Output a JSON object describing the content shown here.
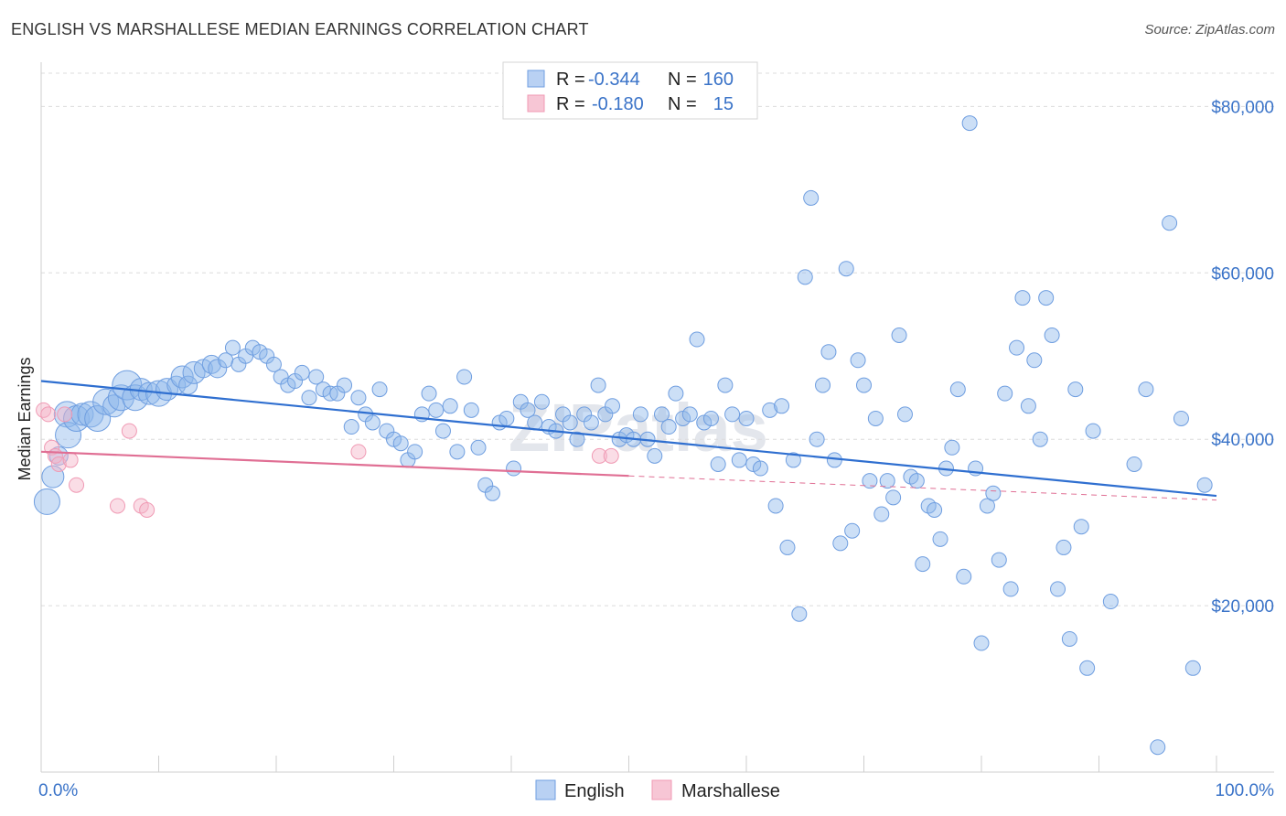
{
  "title": "ENGLISH VS MARSHALLESE MEDIAN EARNINGS CORRELATION CHART",
  "source": "Source: ZipAtlas.com",
  "watermark": "ZIPatlas",
  "colors": {
    "english": "#6f9ee0",
    "english_line": "#2f6fd0",
    "marshallese": "#f09ab4",
    "marshallese_line": "#e06f94",
    "tick": "#3a73c8"
  },
  "legend": {
    "rows": [
      {
        "r_label": "R =",
        "r_value": "-0.344",
        "n_label": "N =",
        "n_value": "160"
      },
      {
        "r_label": "R =",
        "r_value": "-0.180",
        "n_label": "N =",
        "n_value": "15"
      }
    ]
  },
  "bottom_legend": {
    "english": "English",
    "marshallese": "Marshallese"
  },
  "chart_data": {
    "type": "scatter",
    "xlabel": "",
    "ylabel": "Median Earnings",
    "xlim": [
      0,
      100
    ],
    "ylim": [
      0,
      84000
    ],
    "x_tick_labels": [
      "0.0%",
      "100.0%"
    ],
    "y_ticks": [
      20000,
      40000,
      60000,
      80000
    ],
    "y_tick_labels": [
      "$20,000",
      "$40,000",
      "$60,000",
      "$80,000"
    ],
    "grid": "horizontal dashed",
    "legend_placement": "top-center",
    "series": [
      {
        "name": "English",
        "trend": [
          [
            0,
            47000
          ],
          [
            100,
            33200
          ]
        ],
        "points": [
          [
            0.5,
            32500,
            14
          ],
          [
            1.0,
            35500,
            12
          ],
          [
            1.5,
            38000,
            10
          ],
          [
            2.2,
            43000,
            14
          ],
          [
            2.3,
            40500,
            14
          ],
          [
            3.0,
            42500,
            14
          ],
          [
            3.5,
            43000,
            12
          ],
          [
            4.2,
            43000,
            14
          ],
          [
            4.8,
            42500,
            14
          ],
          [
            5.5,
            44500,
            14
          ],
          [
            6.2,
            44000,
            12
          ],
          [
            6.8,
            45000,
            14
          ],
          [
            7.3,
            46500,
            16
          ],
          [
            8.0,
            45000,
            14
          ],
          [
            8.5,
            46000,
            12
          ],
          [
            9.2,
            45500,
            12
          ],
          [
            10.0,
            45500,
            14
          ],
          [
            10.7,
            46000,
            12
          ],
          [
            11.5,
            46500,
            10
          ],
          [
            12.0,
            47500,
            12
          ],
          [
            12.5,
            46500,
            10
          ],
          [
            13.0,
            48000,
            12
          ],
          [
            13.8,
            48500,
            10
          ],
          [
            14.5,
            49000,
            10
          ],
          [
            15.0,
            48500,
            10
          ],
          [
            15.7,
            49500,
            8
          ],
          [
            16.3,
            51000,
            8
          ],
          [
            16.8,
            49000,
            8
          ],
          [
            17.4,
            50000,
            8
          ],
          [
            18.0,
            51000,
            8
          ],
          [
            18.6,
            50500,
            8
          ],
          [
            19.2,
            50000,
            8
          ],
          [
            19.8,
            49000,
            8
          ],
          [
            20.4,
            47500,
            8
          ],
          [
            21.0,
            46500,
            8
          ],
          [
            21.6,
            47000,
            8
          ],
          [
            22.2,
            48000,
            8
          ],
          [
            22.8,
            45000,
            8
          ],
          [
            23.4,
            47500,
            8
          ],
          [
            24.0,
            46000,
            8
          ],
          [
            24.6,
            45500,
            8
          ],
          [
            25.2,
            45500,
            8
          ],
          [
            25.8,
            46500,
            8
          ],
          [
            26.4,
            41500,
            8
          ],
          [
            27.0,
            45000,
            8
          ],
          [
            27.6,
            43000,
            8
          ],
          [
            28.2,
            42000,
            8
          ],
          [
            28.8,
            46000,
            8
          ],
          [
            29.4,
            41000,
            8
          ],
          [
            30.0,
            40000,
            8
          ],
          [
            30.6,
            39500,
            8
          ],
          [
            31.2,
            37500,
            8
          ],
          [
            31.8,
            38500,
            8
          ],
          [
            32.4,
            43000,
            8
          ],
          [
            33.0,
            45500,
            8
          ],
          [
            33.6,
            43500,
            8
          ],
          [
            34.2,
            41000,
            8
          ],
          [
            34.8,
            44000,
            8
          ],
          [
            35.4,
            38500,
            8
          ],
          [
            36.0,
            47500,
            8
          ],
          [
            36.6,
            43500,
            8
          ],
          [
            37.2,
            39000,
            8
          ],
          [
            37.8,
            34500,
            8
          ],
          [
            38.4,
            33500,
            8
          ],
          [
            39.0,
            42000,
            8
          ],
          [
            39.6,
            42500,
            8
          ],
          [
            40.2,
            36500,
            8
          ],
          [
            40.8,
            44500,
            8
          ],
          [
            41.4,
            43500,
            8
          ],
          [
            42.0,
            42000,
            8
          ],
          [
            42.6,
            44500,
            8
          ],
          [
            43.2,
            41500,
            8
          ],
          [
            43.8,
            41000,
            8
          ],
          [
            44.4,
            43000,
            8
          ],
          [
            45.0,
            42000,
            8
          ],
          [
            45.6,
            40000,
            8
          ],
          [
            46.2,
            43000,
            8
          ],
          [
            46.8,
            42000,
            8
          ],
          [
            47.4,
            46500,
            8
          ],
          [
            48.0,
            43000,
            8
          ],
          [
            48.6,
            44000,
            8
          ],
          [
            49.2,
            40000,
            8
          ],
          [
            49.8,
            40500,
            8
          ],
          [
            50.4,
            40000,
            8
          ],
          [
            51.0,
            43000,
            8
          ],
          [
            51.6,
            40000,
            8
          ],
          [
            52.2,
            38000,
            8
          ],
          [
            52.8,
            43000,
            8
          ],
          [
            53.4,
            41500,
            8
          ],
          [
            54.0,
            45500,
            8
          ],
          [
            54.6,
            42500,
            8
          ],
          [
            55.2,
            43000,
            8
          ],
          [
            55.8,
            52000,
            8
          ],
          [
            56.4,
            42000,
            8
          ],
          [
            57.0,
            42500,
            8
          ],
          [
            57.6,
            37000,
            8
          ],
          [
            58.2,
            46500,
            8
          ],
          [
            58.8,
            43000,
            8
          ],
          [
            59.4,
            37500,
            8
          ],
          [
            60.0,
            42500,
            8
          ],
          [
            60.6,
            37000,
            8
          ],
          [
            61.2,
            36500,
            8
          ],
          [
            62.0,
            43500,
            8
          ],
          [
            62.5,
            32000,
            8
          ],
          [
            63.0,
            44000,
            8
          ],
          [
            63.5,
            27000,
            8
          ],
          [
            64.0,
            37500,
            8
          ],
          [
            64.5,
            19000,
            8
          ],
          [
            65.0,
            59500,
            8
          ],
          [
            65.5,
            69000,
            8
          ],
          [
            66.0,
            40000,
            8
          ],
          [
            66.5,
            46500,
            8
          ],
          [
            67.0,
            50500,
            8
          ],
          [
            67.5,
            37500,
            8
          ],
          [
            68.0,
            27500,
            8
          ],
          [
            68.5,
            60500,
            8
          ],
          [
            69.0,
            29000,
            8
          ],
          [
            69.5,
            49500,
            8
          ],
          [
            70.0,
            46500,
            8
          ],
          [
            70.5,
            35000,
            8
          ],
          [
            71.0,
            42500,
            8
          ],
          [
            71.5,
            31000,
            8
          ],
          [
            72.0,
            35000,
            8
          ],
          [
            72.5,
            33000,
            8
          ],
          [
            73.0,
            52500,
            8
          ],
          [
            73.5,
            43000,
            8
          ],
          [
            74.0,
            35500,
            8
          ],
          [
            74.5,
            35000,
            8
          ],
          [
            75.0,
            25000,
            8
          ],
          [
            75.5,
            32000,
            8
          ],
          [
            76.0,
            31500,
            8
          ],
          [
            76.5,
            28000,
            8
          ],
          [
            77.0,
            36500,
            8
          ],
          [
            77.5,
            39000,
            8
          ],
          [
            78.0,
            46000,
            8
          ],
          [
            78.5,
            23500,
            8
          ],
          [
            79.0,
            78000,
            8
          ],
          [
            79.5,
            36500,
            8
          ],
          [
            80.0,
            15500,
            8
          ],
          [
            80.5,
            32000,
            8
          ],
          [
            81.0,
            33500,
            8
          ],
          [
            81.5,
            25500,
            8
          ],
          [
            82.0,
            45500,
            8
          ],
          [
            82.5,
            22000,
            8
          ],
          [
            83.0,
            51000,
            8
          ],
          [
            83.5,
            57000,
            8
          ],
          [
            84.0,
            44000,
            8
          ],
          [
            84.5,
            49500,
            8
          ],
          [
            85.0,
            40000,
            8
          ],
          [
            85.5,
            57000,
            8
          ],
          [
            86.0,
            52500,
            8
          ],
          [
            86.5,
            22000,
            8
          ],
          [
            87.0,
            27000,
            8
          ],
          [
            87.5,
            16000,
            8
          ],
          [
            88.0,
            46000,
            8
          ],
          [
            88.5,
            29500,
            8
          ],
          [
            89.0,
            12500,
            8
          ],
          [
            89.5,
            41000,
            8
          ],
          [
            91.0,
            20500,
            8
          ],
          [
            93.0,
            37000,
            8
          ],
          [
            94.0,
            46000,
            8
          ],
          [
            95.0,
            3000,
            8
          ],
          [
            96.0,
            66000,
            8
          ],
          [
            97.0,
            42500,
            8
          ],
          [
            98.0,
            12500,
            8
          ],
          [
            99.0,
            34500,
            8
          ]
        ]
      },
      {
        "name": "Marshallese",
        "trend": [
          [
            0,
            38500
          ],
          [
            50,
            35600
          ]
        ],
        "points": [
          [
            0.2,
            43500,
            8
          ],
          [
            0.6,
            43000,
            8
          ],
          [
            0.9,
            39000,
            8
          ],
          [
            1.2,
            38000,
            8
          ],
          [
            1.5,
            37000,
            8
          ],
          [
            2.0,
            43000,
            8
          ],
          [
            2.5,
            37500,
            8
          ],
          [
            3.0,
            34500,
            8
          ],
          [
            6.5,
            32000,
            8
          ],
          [
            7.5,
            41000,
            8
          ],
          [
            8.5,
            32000,
            8
          ],
          [
            9.0,
            31500,
            8
          ],
          [
            27.0,
            38500,
            8
          ],
          [
            47.5,
            38000,
            8
          ],
          [
            48.5,
            38000,
            8
          ]
        ]
      }
    ]
  }
}
